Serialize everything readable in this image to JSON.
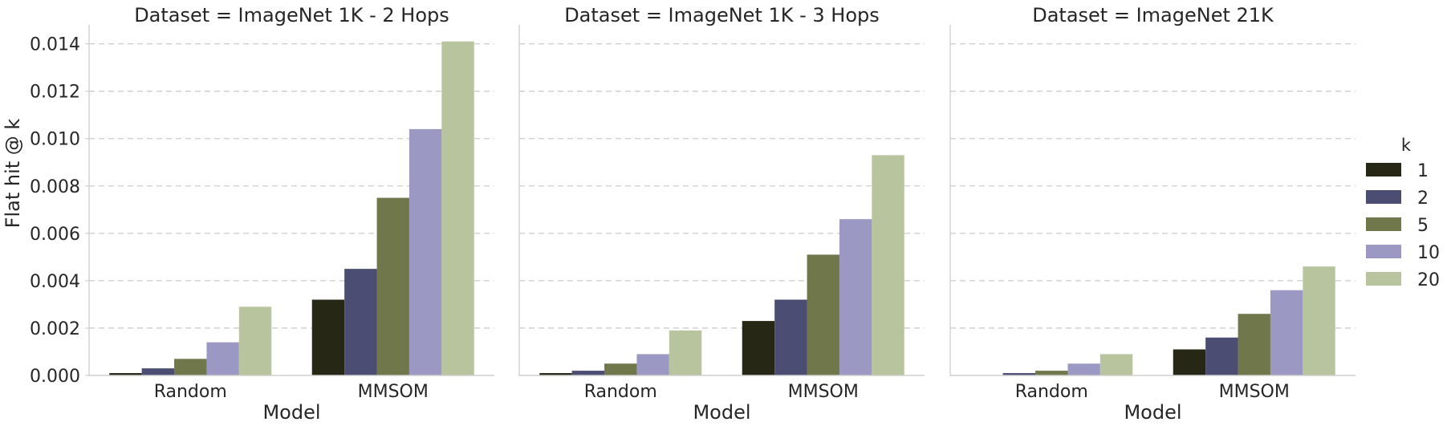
{
  "chart_data": {
    "type": "bar",
    "ylabel": "Flat hit @ k",
    "ylim": [
      0,
      0.0148
    ],
    "yticks": [
      "0.000",
      "0.002",
      "0.004",
      "0.006",
      "0.008",
      "0.010",
      "0.012",
      "0.014"
    ],
    "grid": true,
    "legend": {
      "title": "k",
      "placement": "right",
      "entries": [
        "1",
        "2",
        "5",
        "10",
        "20"
      ]
    },
    "colors": [
      "#272716",
      "#4b4d72",
      "#6f774b",
      "#9b99c4",
      "#b8c49d"
    ],
    "panels": [
      {
        "title": "Dataset = ImageNet 1K - 2 Hops",
        "xlabel": "Model",
        "categories": [
          "Random",
          "MMSOM"
        ],
        "series": [
          {
            "name": "1",
            "values": [
              0.0001,
              0.0032
            ]
          },
          {
            "name": "2",
            "values": [
              0.0003,
              0.0045
            ]
          },
          {
            "name": "5",
            "values": [
              0.0007,
              0.0075
            ]
          },
          {
            "name": "10",
            "values": [
              0.0014,
              0.0104
            ]
          },
          {
            "name": "20",
            "values": [
              0.0029,
              0.0141
            ]
          }
        ]
      },
      {
        "title": "Dataset = ImageNet 1K - 3 Hops",
        "xlabel": "Model",
        "categories": [
          "Random",
          "MMSOM"
        ],
        "series": [
          {
            "name": "1",
            "values": [
              0.0001,
              0.0023
            ]
          },
          {
            "name": "2",
            "values": [
              0.0002,
              0.0032
            ]
          },
          {
            "name": "5",
            "values": [
              0.0005,
              0.0051
            ]
          },
          {
            "name": "10",
            "values": [
              0.0009,
              0.0066
            ]
          },
          {
            "name": "20",
            "values": [
              0.0019,
              0.0093
            ]
          }
        ]
      },
      {
        "title": "Dataset = ImageNet 21K",
        "xlabel": "Model",
        "categories": [
          "Random",
          "MMSOM"
        ],
        "series": [
          {
            "name": "1",
            "values": [
              0.0,
              0.0011
            ]
          },
          {
            "name": "2",
            "values": [
              0.0001,
              0.0016
            ]
          },
          {
            "name": "5",
            "values": [
              0.0002,
              0.0026
            ]
          },
          {
            "name": "10",
            "values": [
              0.0005,
              0.0036
            ]
          },
          {
            "name": "20",
            "values": [
              0.0009,
              0.0046
            ]
          }
        ]
      }
    ]
  }
}
